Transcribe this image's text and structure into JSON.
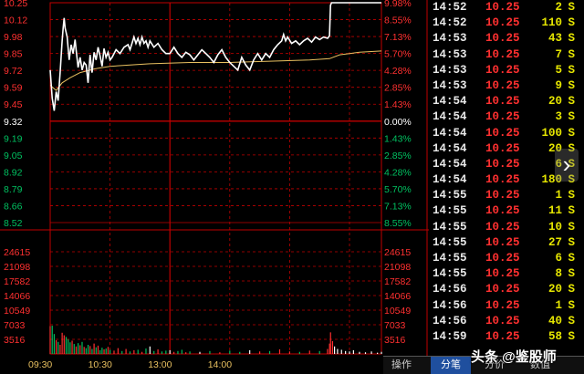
{
  "chart_data": {
    "type": "line",
    "price_axis": {
      "labels": [
        "10.25",
        "10.12",
        "9.98",
        "9.85",
        "9.72",
        "9.59",
        "9.45",
        "9.32",
        "9.19",
        "9.05",
        "8.92",
        "8.79",
        "8.66",
        "8.52"
      ],
      "pct_labels": [
        "9.98%",
        "8.55%",
        "7.13%",
        "5.70%",
        "4.28%",
        "2.85%",
        "1.43%",
        "0.00%",
        "1.43%",
        "2.85%",
        "4.28%",
        "5.70%",
        "7.13%",
        "8.55%"
      ],
      "ylim": [
        8.52,
        10.25
      ],
      "prev_close": 9.32
    },
    "volume_axis": {
      "labels": [
        "24615",
        "21098",
        "17582",
        "14066",
        "10549",
        "7033",
        "3516"
      ],
      "ylim": [
        0,
        28131
      ]
    },
    "time_labels": [
      "09:30",
      "10:30",
      "13:00",
      "14:00"
    ],
    "price_series": [
      {
        "t": 0,
        "v": 9.72
      },
      {
        "t": 2,
        "v": 9.5
      },
      {
        "t": 4,
        "v": 9.4
      },
      {
        "t": 6,
        "v": 9.55
      },
      {
        "t": 8,
        "v": 9.48
      },
      {
        "t": 10,
        "v": 9.7
      },
      {
        "t": 12,
        "v": 9.95
      },
      {
        "t": 13,
        "v": 10.05
      },
      {
        "t": 14,
        "v": 10.13
      },
      {
        "t": 15,
        "v": 10.05
      },
      {
        "t": 17,
        "v": 9.98
      },
      {
        "t": 19,
        "v": 9.8
      },
      {
        "t": 21,
        "v": 9.92
      },
      {
        "t": 23,
        "v": 9.85
      },
      {
        "t": 25,
        "v": 9.96
      },
      {
        "t": 26,
        "v": 9.88
      },
      {
        "t": 28,
        "v": 9.74
      },
      {
        "t": 30,
        "v": 9.82
      },
      {
        "t": 32,
        "v": 9.72
      },
      {
        "t": 34,
        "v": 9.78
      },
      {
        "t": 36,
        "v": 9.76
      },
      {
        "t": 38,
        "v": 9.62
      },
      {
        "t": 40,
        "v": 9.84
      },
      {
        "t": 42,
        "v": 9.7
      },
      {
        "t": 44,
        "v": 9.86
      },
      {
        "t": 46,
        "v": 9.8
      },
      {
        "t": 48,
        "v": 9.9
      },
      {
        "t": 50,
        "v": 9.83
      },
      {
        "t": 52,
        "v": 9.75
      },
      {
        "t": 54,
        "v": 9.89
      },
      {
        "t": 56,
        "v": 9.82
      },
      {
        "t": 58,
        "v": 9.86
      },
      {
        "t": 60,
        "v": 9.8
      },
      {
        "t": 62,
        "v": 9.82
      },
      {
        "t": 66,
        "v": 9.88
      },
      {
        "t": 70,
        "v": 9.85
      },
      {
        "t": 74,
        "v": 9.9
      },
      {
        "t": 78,
        "v": 9.92
      },
      {
        "t": 80,
        "v": 9.88
      },
      {
        "t": 84,
        "v": 9.98
      },
      {
        "t": 86,
        "v": 9.93
      },
      {
        "t": 88,
        "v": 9.97
      },
      {
        "t": 90,
        "v": 9.92
      },
      {
        "t": 92,
        "v": 9.98
      },
      {
        "t": 94,
        "v": 9.93
      },
      {
        "t": 96,
        "v": 9.95
      },
      {
        "t": 98,
        "v": 9.9
      },
      {
        "t": 100,
        "v": 9.95
      },
      {
        "t": 104,
        "v": 9.9
      },
      {
        "t": 108,
        "v": 9.93
      },
      {
        "t": 112,
        "v": 9.88
      },
      {
        "t": 116,
        "v": 9.85
      },
      {
        "t": 120,
        "v": 9.85
      },
      {
        "t": 124,
        "v": 9.9
      },
      {
        "t": 128,
        "v": 9.85
      },
      {
        "t": 132,
        "v": 9.82
      },
      {
        "t": 136,
        "v": 9.86
      },
      {
        "t": 140,
        "v": 9.84
      },
      {
        "t": 144,
        "v": 9.8
      },
      {
        "t": 148,
        "v": 9.84
      },
      {
        "t": 152,
        "v": 9.88
      },
      {
        "t": 156,
        "v": 9.85
      },
      {
        "t": 160,
        "v": 9.82
      },
      {
        "t": 164,
        "v": 9.78
      },
      {
        "t": 168,
        "v": 9.84
      },
      {
        "t": 172,
        "v": 9.88
      },
      {
        "t": 176,
        "v": 9.82
      },
      {
        "t": 180,
        "v": 9.78
      },
      {
        "t": 184,
        "v": 9.75
      },
      {
        "t": 188,
        "v": 9.72
      },
      {
        "t": 192,
        "v": 9.82
      },
      {
        "t": 196,
        "v": 9.76
      },
      {
        "t": 200,
        "v": 9.72
      },
      {
        "t": 204,
        "v": 9.8
      },
      {
        "t": 208,
        "v": 9.85
      },
      {
        "t": 212,
        "v": 9.8
      },
      {
        "t": 216,
        "v": 9.85
      },
      {
        "t": 220,
        "v": 9.82
      },
      {
        "t": 224,
        "v": 9.88
      },
      {
        "t": 228,
        "v": 9.92
      },
      {
        "t": 232,
        "v": 9.95
      },
      {
        "t": 234,
        "v": 10.0
      },
      {
        "t": 236,
        "v": 9.95
      },
      {
        "t": 238,
        "v": 9.98
      },
      {
        "t": 242,
        "v": 9.93
      },
      {
        "t": 246,
        "v": 9.95
      },
      {
        "t": 250,
        "v": 9.92
      },
      {
        "t": 254,
        "v": 9.95
      },
      {
        "t": 258,
        "v": 9.97
      },
      {
        "t": 262,
        "v": 9.94
      },
      {
        "t": 266,
        "v": 9.98
      },
      {
        "t": 270,
        "v": 9.96
      },
      {
        "t": 274,
        "v": 9.98
      },
      {
        "t": 278,
        "v": 9.97
      },
      {
        "t": 280,
        "v": 9.99
      },
      {
        "t": 281,
        "v": 10.23
      },
      {
        "t": 282,
        "v": 10.25
      },
      {
        "t": 288,
        "v": 10.25
      },
      {
        "t": 300,
        "v": 10.25
      },
      {
        "t": 320,
        "v": 10.25
      },
      {
        "t": 332,
        "v": 10.25
      }
    ],
    "avg_series": [
      {
        "t": 0,
        "v": 9.6
      },
      {
        "t": 6,
        "v": 9.56
      },
      {
        "t": 12,
        "v": 9.62
      },
      {
        "t": 20,
        "v": 9.66
      },
      {
        "t": 30,
        "v": 9.7
      },
      {
        "t": 45,
        "v": 9.73
      },
      {
        "t": 60,
        "v": 9.75
      },
      {
        "t": 80,
        "v": 9.76
      },
      {
        "t": 100,
        "v": 9.77
      },
      {
        "t": 140,
        "v": 9.78
      },
      {
        "t": 180,
        "v": 9.78
      },
      {
        "t": 220,
        "v": 9.79
      },
      {
        "t": 260,
        "v": 9.8
      },
      {
        "t": 280,
        "v": 9.81
      },
      {
        "t": 290,
        "v": 9.84
      },
      {
        "t": 310,
        "v": 9.86
      },
      {
        "t": 332,
        "v": 9.87
      }
    ],
    "volume_series": [
      {
        "t": 0,
        "v": 6700
      },
      {
        "t": 2,
        "v": 6800
      },
      {
        "t": 4,
        "v": 4800
      },
      {
        "t": 6,
        "v": 3300
      },
      {
        "t": 8,
        "v": 2900
      },
      {
        "t": 10,
        "v": 2200
      },
      {
        "t": 12,
        "v": 5100
      },
      {
        "t": 14,
        "v": 4500
      },
      {
        "t": 16,
        "v": 4100
      },
      {
        "t": 18,
        "v": 3500
      },
      {
        "t": 20,
        "v": 2800
      },
      {
        "t": 22,
        "v": 3200
      },
      {
        "t": 24,
        "v": 2400
      },
      {
        "t": 26,
        "v": 1800
      },
      {
        "t": 28,
        "v": 2600
      },
      {
        "t": 30,
        "v": 2100
      },
      {
        "t": 32,
        "v": 2900
      },
      {
        "t": 34,
        "v": 1700
      },
      {
        "t": 36,
        "v": 1400
      },
      {
        "t": 38,
        "v": 2200
      },
      {
        "t": 40,
        "v": 1900
      },
      {
        "t": 42,
        "v": 1200
      },
      {
        "t": 44,
        "v": 2500
      },
      {
        "t": 46,
        "v": 1600
      },
      {
        "t": 48,
        "v": 2000
      },
      {
        "t": 50,
        "v": 900
      },
      {
        "t": 52,
        "v": 1500
      },
      {
        "t": 54,
        "v": 1100
      },
      {
        "t": 56,
        "v": 1300
      },
      {
        "t": 58,
        "v": 1700
      },
      {
        "t": 60,
        "v": 1000
      },
      {
        "t": 64,
        "v": 800
      },
      {
        "t": 68,
        "v": 1400
      },
      {
        "t": 72,
        "v": 700
      },
      {
        "t": 76,
        "v": 1200
      },
      {
        "t": 80,
        "v": 600
      },
      {
        "t": 84,
        "v": 900
      },
      {
        "t": 88,
        "v": 1000
      },
      {
        "t": 92,
        "v": 500
      },
      {
        "t": 96,
        "v": 1300
      },
      {
        "t": 100,
        "v": 1800
      },
      {
        "t": 104,
        "v": 700
      },
      {
        "t": 108,
        "v": 1100
      },
      {
        "t": 112,
        "v": 600
      },
      {
        "t": 116,
        "v": 800
      },
      {
        "t": 120,
        "v": 900
      },
      {
        "t": 124,
        "v": 500
      },
      {
        "t": 128,
        "v": 700
      },
      {
        "t": 132,
        "v": 1000
      },
      {
        "t": 136,
        "v": 400
      },
      {
        "t": 140,
        "v": 600
      },
      {
        "t": 150,
        "v": 500
      },
      {
        "t": 160,
        "v": 700
      },
      {
        "t": 170,
        "v": 400
      },
      {
        "t": 180,
        "v": 800
      },
      {
        "t": 190,
        "v": 500
      },
      {
        "t": 200,
        "v": 900
      },
      {
        "t": 210,
        "v": 600
      },
      {
        "t": 220,
        "v": 700
      },
      {
        "t": 230,
        "v": 1100
      },
      {
        "t": 240,
        "v": 600
      },
      {
        "t": 250,
        "v": 500
      },
      {
        "t": 260,
        "v": 800
      },
      {
        "t": 270,
        "v": 700
      },
      {
        "t": 278,
        "v": 1200
      },
      {
        "t": 280,
        "v": 2500
      },
      {
        "t": 281,
        "v": 5200
      },
      {
        "t": 283,
        "v": 3100
      },
      {
        "t": 285,
        "v": 1800
      },
      {
        "t": 288,
        "v": 1200
      },
      {
        "t": 292,
        "v": 1000
      },
      {
        "t": 296,
        "v": 700
      },
      {
        "t": 300,
        "v": 600
      },
      {
        "t": 304,
        "v": 900
      },
      {
        "t": 310,
        "v": 500
      },
      {
        "t": 316,
        "v": 400
      },
      {
        "t": 322,
        "v": 600
      },
      {
        "t": 328,
        "v": 300
      },
      {
        "t": 332,
        "v": 500
      }
    ],
    "colors": {
      "price": "#ffffff",
      "avg": "#e8c060",
      "grid": "#c00000",
      "up": "#ff3030",
      "down": "#00c060",
      "neutral": "#ffffff",
      "price_up": "#ff3030",
      "price_down": "#00c060"
    }
  },
  "ticks": [
    {
      "time": "14:52",
      "price": "10.25",
      "vol": "2",
      "side": "S"
    },
    {
      "time": "14:52",
      "price": "10.25",
      "vol": "110",
      "side": "S"
    },
    {
      "time": "14:53",
      "price": "10.25",
      "vol": "43",
      "side": "S"
    },
    {
      "time": "14:53",
      "price": "10.25",
      "vol": "7",
      "side": "S"
    },
    {
      "time": "14:53",
      "price": "10.25",
      "vol": "5",
      "side": "S"
    },
    {
      "time": "14:53",
      "price": "10.25",
      "vol": "9",
      "side": "S"
    },
    {
      "time": "14:54",
      "price": "10.25",
      "vol": "20",
      "side": "S"
    },
    {
      "time": "14:54",
      "price": "10.25",
      "vol": "3",
      "side": "S"
    },
    {
      "time": "14:54",
      "price": "10.25",
      "vol": "100",
      "side": "S"
    },
    {
      "time": "14:54",
      "price": "10.25",
      "vol": "20",
      "side": "S"
    },
    {
      "time": "14:54",
      "price": "10.25",
      "vol": "6",
      "side": "S"
    },
    {
      "time": "14:54",
      "price": "10.25",
      "vol": "180",
      "side": "S"
    },
    {
      "time": "14:55",
      "price": "10.25",
      "vol": "1",
      "side": "S"
    },
    {
      "time": "14:55",
      "price": "10.25",
      "vol": "11",
      "side": "S"
    },
    {
      "time": "14:55",
      "price": "10.25",
      "vol": "10",
      "side": "S"
    },
    {
      "time": "14:55",
      "price": "10.25",
      "vol": "27",
      "side": "S"
    },
    {
      "time": "14:55",
      "price": "10.25",
      "vol": "6",
      "side": "S"
    },
    {
      "time": "14:55",
      "price": "10.25",
      "vol": "8",
      "side": "S"
    },
    {
      "time": "14:56",
      "price": "10.25",
      "vol": "20",
      "side": "S"
    },
    {
      "time": "14:56",
      "price": "10.25",
      "vol": "1",
      "side": "S"
    },
    {
      "time": "14:56",
      "price": "10.25",
      "vol": "40",
      "side": "S"
    },
    {
      "time": "14:59",
      "price": "10.25",
      "vol": "58",
      "side": "S"
    }
  ],
  "tabs": [
    "操作",
    "分笔",
    "分价",
    "数值"
  ],
  "watermark": "头条 @鉴股师",
  "nav": {
    "arrow_label": "›"
  }
}
